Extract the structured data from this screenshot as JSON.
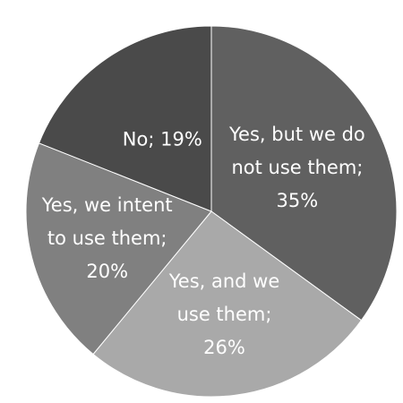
{
  "chart_data": {
    "type": "pie",
    "title": "",
    "start_angle_deg": 0,
    "direction": "clockwise",
    "slices": [
      {
        "label": "Yes, but we do not use them",
        "value": 35,
        "value_label": "35%",
        "display_lines": [
          "Yes, but we do",
          "not use them;",
          "35%"
        ],
        "color": "#606060"
      },
      {
        "label": "Yes, and we use them",
        "value": 26,
        "value_label": "26%",
        "display_lines": [
          "Yes, and we",
          "use them;",
          "26%"
        ],
        "color": "#a9a9a9"
      },
      {
        "label": "Yes, we intent to use them",
        "value": 20,
        "value_label": "20%",
        "display_lines": [
          "Yes, we intent",
          "to use them;",
          "20%"
        ],
        "color": "#808080"
      },
      {
        "label": "No",
        "value": 19,
        "value_label": "19%",
        "display_lines": [
          "No; 19%"
        ],
        "color": "#4a4a4a"
      }
    ]
  }
}
